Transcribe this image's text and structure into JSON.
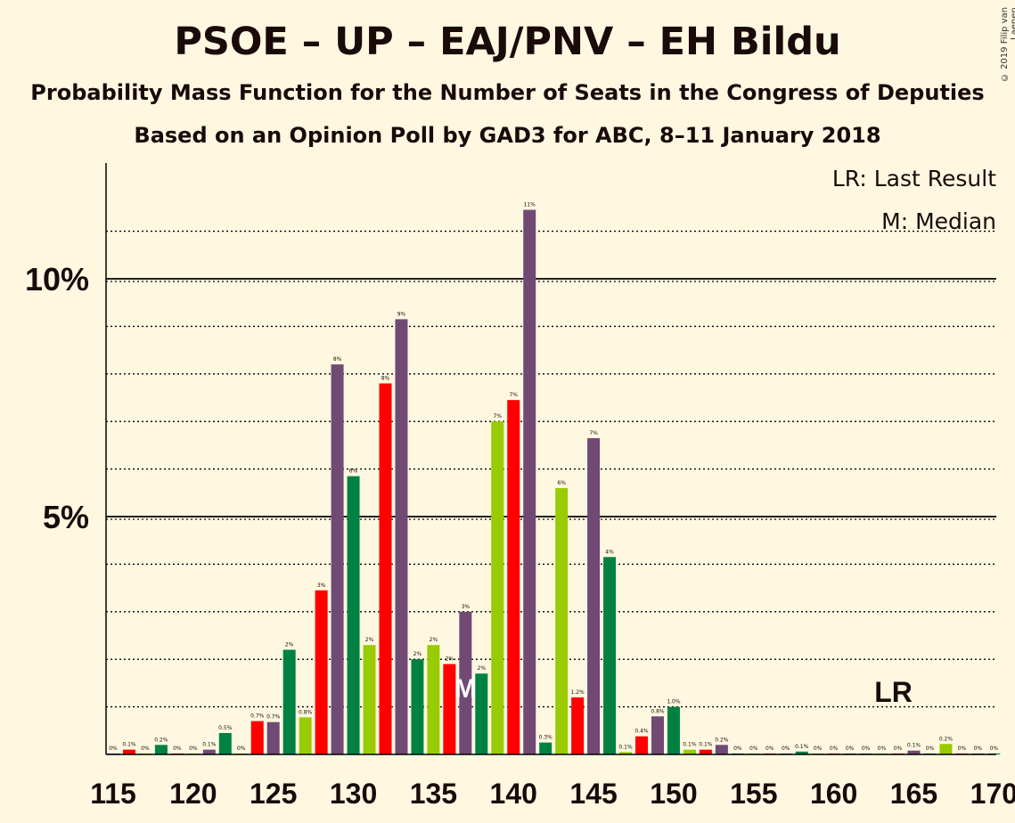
{
  "title": "PSOE – UP – EAJ/PNV – EH Bildu",
  "subtitle": "Probability Mass Function for the Number of Seats in the Congress of Deputies",
  "subtitle2": "Based on an Opinion Poll by GAD3 for ABC, 8–11 January 2018",
  "copyright": "© 2019 Filip van Laenen",
  "legend": {
    "last_result": "LR: Last Result",
    "median": "M: Median"
  },
  "markers": {
    "last_result_label": "LR",
    "last_result_seat": 164,
    "median_label": "M",
    "median_seat": 137
  },
  "colors": {
    "purple": "#714975",
    "red": "#ff0000",
    "green": "#008142",
    "lightgreen": "#99cc00",
    "axis": "#000000"
  },
  "chart_data": {
    "type": "bar",
    "xlim": [
      115,
      170
    ],
    "ylim": [
      0,
      12.4
    ],
    "x_ticks": [
      "115",
      "120",
      "125",
      "130",
      "135",
      "140",
      "145",
      "150",
      "155",
      "160",
      "165",
      "170"
    ],
    "y_ticks": [
      {
        "value": 5,
        "label": "5%"
      },
      {
        "value": 10,
        "label": "10%"
      }
    ],
    "bars": [
      {
        "seat": 115,
        "value": 0.02,
        "label": "0%",
        "color": "purple"
      },
      {
        "seat": 116,
        "value": 0.1,
        "label": "0.1%",
        "color": "red"
      },
      {
        "seat": 117,
        "value": 0.02,
        "label": "0%",
        "color": "lightgreen"
      },
      {
        "seat": 118,
        "value": 0.2,
        "label": "0.2%",
        "color": "green"
      },
      {
        "seat": 119,
        "value": 0.02,
        "label": "0%",
        "color": "red"
      },
      {
        "seat": 120,
        "value": 0.02,
        "label": "0%",
        "color": "lightgreen"
      },
      {
        "seat": 121,
        "value": 0.1,
        "label": "0.1%",
        "color": "purple"
      },
      {
        "seat": 122,
        "value": 0.45,
        "label": "0.5%",
        "color": "green"
      },
      {
        "seat": 123,
        "value": 0.02,
        "label": "0%",
        "color": "lightgreen"
      },
      {
        "seat": 124,
        "value": 0.7,
        "label": "0.7%",
        "color": "red"
      },
      {
        "seat": 125,
        "value": 0.68,
        "label": "0.7%",
        "color": "purple"
      },
      {
        "seat": 126,
        "value": 2.2,
        "label": "2%",
        "color": "green"
      },
      {
        "seat": 127,
        "value": 0.78,
        "label": "0.8%",
        "color": "lightgreen"
      },
      {
        "seat": 128,
        "value": 3.45,
        "label": "3%",
        "color": "red"
      },
      {
        "seat": 129,
        "value": 8.2,
        "label": "8%",
        "color": "purple"
      },
      {
        "seat": 130,
        "value": 5.85,
        "label": "6%",
        "color": "green"
      },
      {
        "seat": 131,
        "value": 2.3,
        "label": "2%",
        "color": "lightgreen"
      },
      {
        "seat": 132,
        "value": 7.8,
        "label": "8%",
        "color": "red"
      },
      {
        "seat": 133,
        "value": 9.15,
        "label": "9%",
        "color": "purple"
      },
      {
        "seat": 134,
        "value": 2.0,
        "label": "2%",
        "color": "green"
      },
      {
        "seat": 135,
        "value": 2.3,
        "label": "2%",
        "color": "lightgreen"
      },
      {
        "seat": 136,
        "value": 1.9,
        "label": "2%",
        "color": "red"
      },
      {
        "seat": 137,
        "value": 3.0,
        "label": "3%",
        "color": "purple"
      },
      {
        "seat": 138,
        "value": 1.7,
        "label": "2%",
        "color": "green"
      },
      {
        "seat": 139,
        "value": 7.0,
        "label": "7%",
        "color": "lightgreen"
      },
      {
        "seat": 140,
        "value": 7.45,
        "label": "7%",
        "color": "red"
      },
      {
        "seat": 141,
        "value": 11.45,
        "label": "11%",
        "color": "purple"
      },
      {
        "seat": 142,
        "value": 0.25,
        "label": "0.3%",
        "color": "green"
      },
      {
        "seat": 143,
        "value": 5.6,
        "label": "6%",
        "color": "lightgreen"
      },
      {
        "seat": 144,
        "value": 1.2,
        "label": "1.2%",
        "color": "red"
      },
      {
        "seat": 145,
        "value": 6.65,
        "label": "7%",
        "color": "purple"
      },
      {
        "seat": 146,
        "value": 4.15,
        "label": "4%",
        "color": "green"
      },
      {
        "seat": 147,
        "value": 0.05,
        "label": "0.1%",
        "color": "lightgreen"
      },
      {
        "seat": 148,
        "value": 0.38,
        "label": "0.4%",
        "color": "red"
      },
      {
        "seat": 149,
        "value": 0.8,
        "label": "0.8%",
        "color": "purple"
      },
      {
        "seat": 150,
        "value": 1.0,
        "label": "1.0%",
        "color": "green"
      },
      {
        "seat": 151,
        "value": 0.1,
        "label": "0.1%",
        "color": "lightgreen"
      },
      {
        "seat": 152,
        "value": 0.1,
        "label": "0.1%",
        "color": "red"
      },
      {
        "seat": 153,
        "value": 0.2,
        "label": "0.2%",
        "color": "purple"
      },
      {
        "seat": 154,
        "value": 0.02,
        "label": "0%",
        "color": "green"
      },
      {
        "seat": 155,
        "value": 0.02,
        "label": "0%",
        "color": "lightgreen"
      },
      {
        "seat": 156,
        "value": 0.02,
        "label": "0%",
        "color": "red"
      },
      {
        "seat": 157,
        "value": 0.02,
        "label": "0%",
        "color": "purple"
      },
      {
        "seat": 158,
        "value": 0.06,
        "label": "0.1%",
        "color": "green"
      },
      {
        "seat": 159,
        "value": 0.02,
        "label": "0%",
        "color": "lightgreen"
      },
      {
        "seat": 160,
        "value": 0.02,
        "label": "0%",
        "color": "red"
      },
      {
        "seat": 161,
        "value": 0.02,
        "label": "0%",
        "color": "purple"
      },
      {
        "seat": 162,
        "value": 0.02,
        "label": "0%",
        "color": "green"
      },
      {
        "seat": 163,
        "value": 0.02,
        "label": "0%",
        "color": "lightgreen"
      },
      {
        "seat": 164,
        "value": 0.02,
        "label": "0%",
        "color": "red"
      },
      {
        "seat": 165,
        "value": 0.08,
        "label": "0.1%",
        "color": "purple"
      },
      {
        "seat": 166,
        "value": 0.02,
        "label": "0%",
        "color": "green"
      },
      {
        "seat": 167,
        "value": 0.22,
        "label": "0.2%",
        "color": "lightgreen"
      },
      {
        "seat": 168,
        "value": 0.02,
        "label": "0%",
        "color": "red"
      },
      {
        "seat": 169,
        "value": 0.02,
        "label": "0%",
        "color": "purple"
      },
      {
        "seat": 170,
        "value": 0.02,
        "label": "0%",
        "color": "green"
      }
    ]
  }
}
